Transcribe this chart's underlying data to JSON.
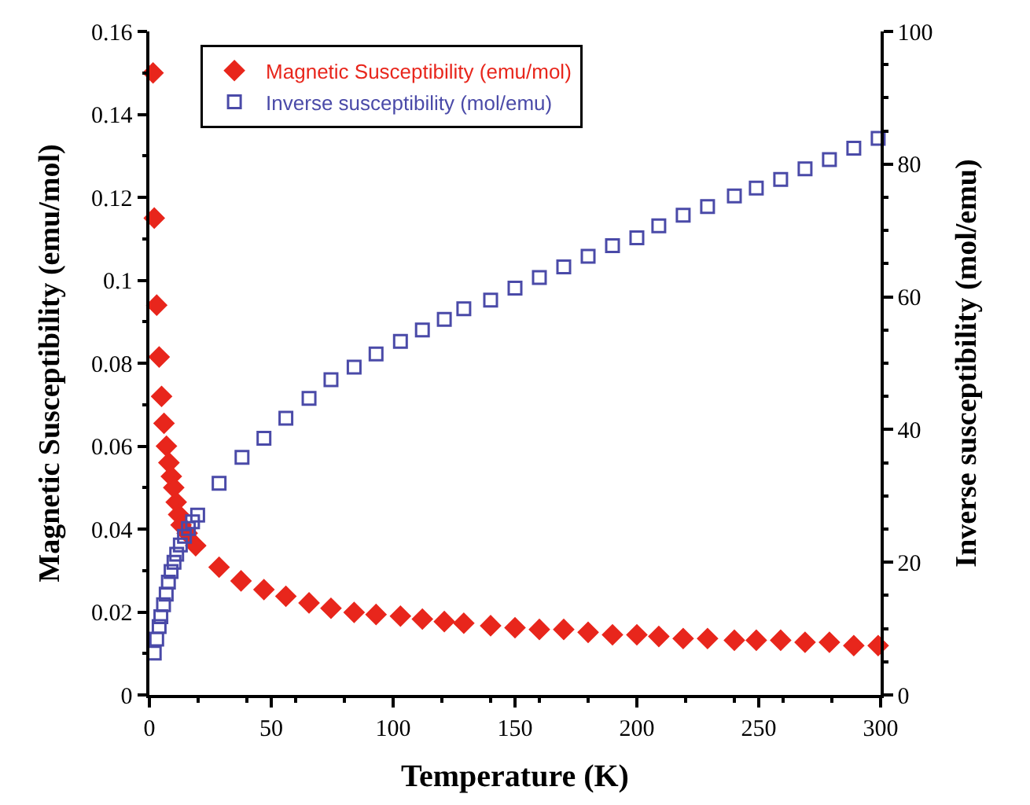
{
  "chart_data": {
    "type": "scatter",
    "xlabel": "Temperature (K)",
    "ylabel": "Magnetic Susceptibility (emu/mol)",
    "y2label": "Inverse susceptibility (mol/emu)",
    "xlim": [
      0,
      300
    ],
    "xticks": [
      0,
      50,
      100,
      150,
      200,
      250,
      300
    ],
    "ylim": [
      0,
      0.16
    ],
    "yticks": [
      0,
      0.02,
      0.04,
      0.06,
      0.08,
      0.1,
      0.12,
      0.14,
      0.16
    ],
    "y2lim": [
      0,
      100
    ],
    "y2ticks": [
      0,
      20,
      40,
      60,
      80,
      100
    ],
    "grid": false,
    "legend": "top left",
    "series": [
      {
        "name": "Magnetic Susceptibility (emu/mol)",
        "color": "#e8261c",
        "marker": "diamond",
        "x": [
          1.5,
          2,
          3,
          4,
          5,
          6,
          7,
          8,
          9,
          10,
          11,
          12,
          13,
          15.5,
          19,
          28.6,
          37.6,
          47,
          56,
          65.5,
          74.5,
          84,
          93,
          103,
          112,
          121,
          129,
          140,
          150,
          160,
          170,
          180,
          190,
          200,
          209,
          219,
          229,
          240,
          249,
          259,
          269,
          279,
          289,
          299
        ],
        "values": [
          0.15,
          0.115,
          0.094,
          0.0815,
          0.072,
          0.0655,
          0.06,
          0.056,
          0.0527,
          0.05,
          0.0465,
          0.0435,
          0.041,
          0.039,
          0.036,
          0.0308,
          0.0275,
          0.0254,
          0.0238,
          0.0222,
          0.0209,
          0.0199,
          0.0194,
          0.019,
          0.0183,
          0.0177,
          0.0173,
          0.0167,
          0.0162,
          0.0158,
          0.0158,
          0.0151,
          0.0145,
          0.0145,
          0.0141,
          0.0136,
          0.0136,
          0.0132,
          0.0132,
          0.0132,
          0.0127,
          0.0127,
          0.0119,
          0.0119
        ]
      },
      {
        "name": "Inverse susceptibility (mol/emu)",
        "color": "#4a4aa8",
        "marker": "square",
        "axis": "y2",
        "x": [
          2,
          3,
          4,
          4.7,
          5.8,
          6.9,
          7.8,
          8.9,
          10.1,
          11.2,
          12.7,
          14.4,
          16,
          17.7,
          19.8,
          28.6,
          38,
          47,
          56,
          65.5,
          74.5,
          84,
          93,
          103,
          112,
          121,
          129,
          140,
          150,
          160,
          170,
          180,
          190,
          200,
          209,
          219,
          229,
          240,
          249,
          259,
          269,
          279,
          289,
          299
        ],
        "values": [
          6.3,
          8.4,
          10.3,
          11.8,
          13.6,
          15.2,
          17.0,
          18.6,
          20.0,
          21.2,
          22.6,
          23.9,
          25.1,
          26.1,
          27.1,
          31.9,
          35.8,
          38.7,
          41.7,
          44.7,
          47.5,
          49.4,
          51.4,
          53.3,
          55.0,
          56.6,
          58.2,
          59.5,
          61.3,
          62.9,
          64.5,
          66.1,
          67.7,
          68.9,
          70.7,
          72.3,
          73.6,
          75.2,
          76.4,
          77.7,
          79.3,
          80.7,
          82.4,
          83.9
        ]
      }
    ]
  }
}
